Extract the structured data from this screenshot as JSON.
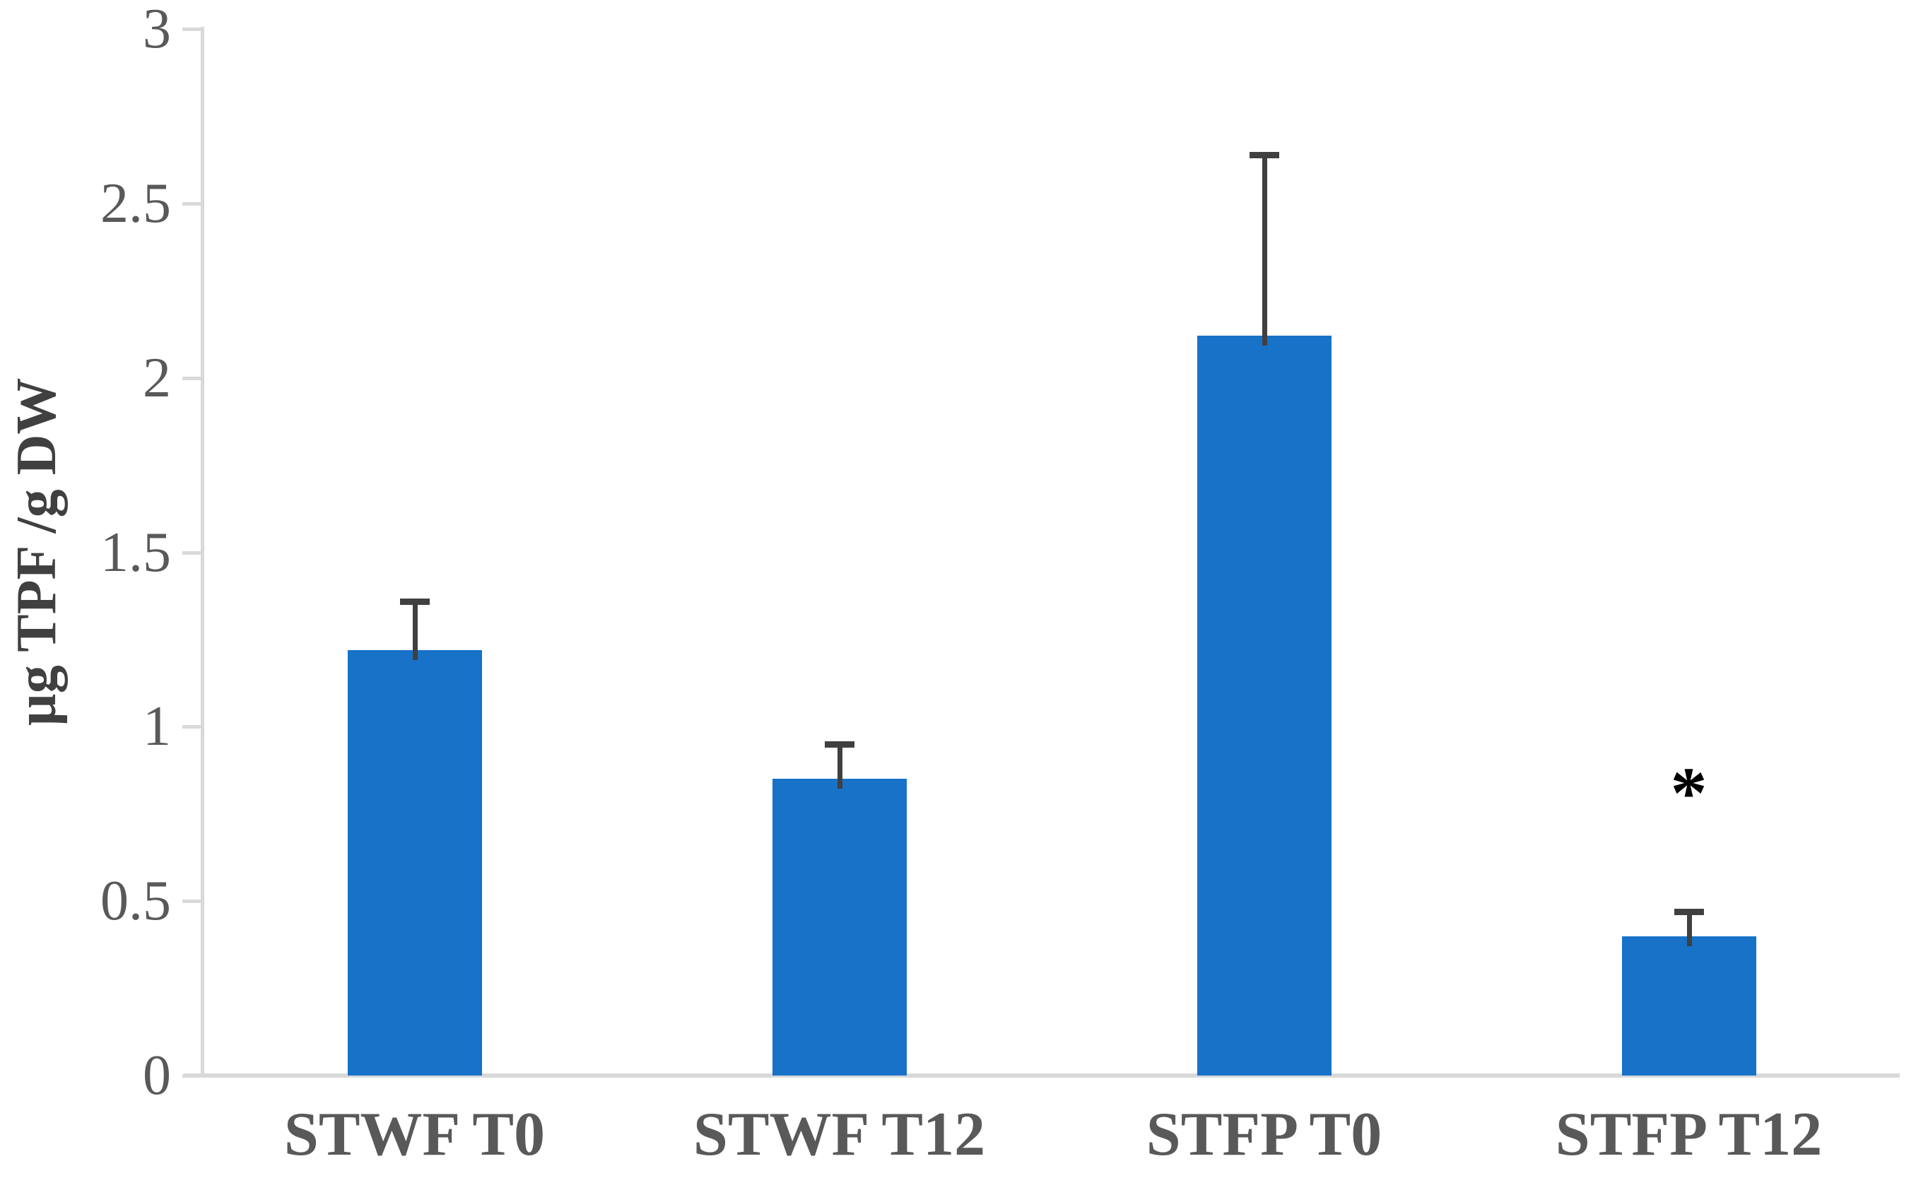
{
  "chart_data": {
    "type": "bar",
    "title": "",
    "xlabel": "",
    "ylabel": "µg TPF /g DW",
    "categories": [
      "STWF T0",
      "STWF T12",
      "STFP T0",
      "STFP T12"
    ],
    "series": [
      {
        "name": "µg TPF /g DW",
        "values": [
          1.22,
          0.85,
          2.12,
          0.4
        ],
        "error_upper": [
          0.14,
          0.1,
          0.52,
          0.07
        ]
      }
    ],
    "ylim": [
      0,
      3
    ],
    "ytick_step": 0.5,
    "ytick_labels": [
      "0",
      "0.5",
      "1",
      "1.5",
      "2",
      "2.5",
      "3"
    ],
    "grid": false,
    "legend_position": "none",
    "annotations": [
      {
        "text": "*",
        "category_index": 3,
        "y_value": 0.82,
        "meaning": "statistically significant"
      }
    ],
    "colors": {
      "bar_fill": "#1772C8",
      "error_bar": "#404040",
      "axis_line": "#D9D9D9",
      "tick_label": "#595959",
      "category_label": "#595959",
      "axis_title": "#404040",
      "annotation": "#000000",
      "background": "#FFFFFF"
    }
  }
}
